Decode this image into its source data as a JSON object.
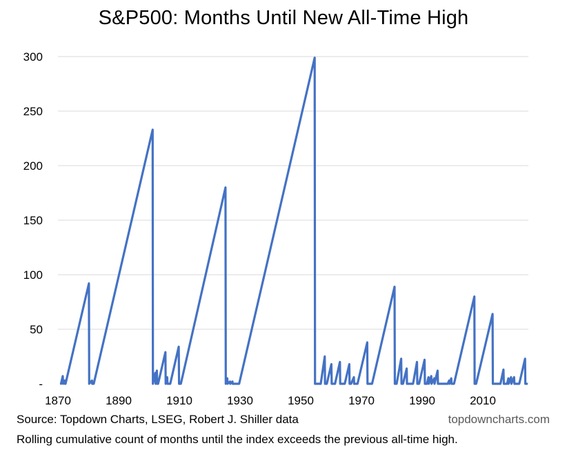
{
  "chart_data": {
    "type": "line",
    "title": "S&P500: Months Until New All-Time High",
    "xlabel": "",
    "ylabel": "",
    "xlim": [
      1870,
      2025
    ],
    "ylim": [
      0,
      300
    ],
    "grid": true,
    "x_ticks": [
      "1870",
      "1890",
      "1910",
      "1930",
      "1950",
      "1970",
      "1990",
      "2010"
    ],
    "y_ticks": [
      "-",
      "50",
      "100",
      "150",
      "200",
      "250",
      "300"
    ],
    "line_color": "#4472C4",
    "series": [
      {
        "name": "",
        "points": [
          [
            1871.0,
            0
          ],
          [
            1871.6,
            7
          ],
          [
            1871.7,
            0
          ],
          [
            1872.2,
            3
          ],
          [
            1872.3,
            0
          ],
          [
            1872.5,
            0
          ],
          [
            1880.2,
            92
          ],
          [
            1880.3,
            0
          ],
          [
            1881.2,
            3
          ],
          [
            1881.3,
            0
          ],
          [
            1881.8,
            0
          ],
          [
            1901.2,
            233
          ],
          [
            1901.3,
            0
          ],
          [
            1902.1,
            10
          ],
          [
            1902.2,
            0
          ],
          [
            1902.6,
            12
          ],
          [
            1902.7,
            0
          ],
          [
            1903.0,
            0
          ],
          [
            1905.4,
            29
          ],
          [
            1905.5,
            0
          ],
          [
            1906.0,
            6
          ],
          [
            1906.1,
            0
          ],
          [
            1907.0,
            0
          ],
          [
            1909.8,
            34
          ],
          [
            1909.9,
            0
          ],
          [
            1910.5,
            0
          ],
          [
            1925.2,
            180
          ],
          [
            1925.3,
            0
          ],
          [
            1925.8,
            5
          ],
          [
            1925.9,
            0
          ],
          [
            1926.7,
            2
          ],
          [
            1926.8,
            0
          ],
          [
            1927.5,
            2
          ],
          [
            1927.6,
            0
          ],
          [
            1929.7,
            0
          ],
          [
            1954.6,
            299
          ],
          [
            1954.7,
            0
          ],
          [
            1956.6,
            0
          ],
          [
            1957.9,
            25
          ],
          [
            1958.0,
            0
          ],
          [
            1958.6,
            0
          ],
          [
            1960.1,
            18
          ],
          [
            1960.2,
            0
          ],
          [
            1961.3,
            0
          ],
          [
            1962.9,
            20
          ],
          [
            1963.0,
            0
          ],
          [
            1964.5,
            0
          ],
          [
            1966.0,
            18
          ],
          [
            1966.1,
            0
          ],
          [
            1966.6,
            0
          ],
          [
            1967.5,
            6
          ],
          [
            1967.6,
            0
          ],
          [
            1968.7,
            0
          ],
          [
            1971.9,
            38
          ],
          [
            1972.0,
            0
          ],
          [
            1973.5,
            0
          ],
          [
            1980.9,
            89
          ],
          [
            1981.0,
            0
          ],
          [
            1981.6,
            0
          ],
          [
            1983.1,
            23
          ],
          [
            1983.2,
            0
          ],
          [
            1983.7,
            0
          ],
          [
            1984.9,
            14
          ],
          [
            1985.0,
            0
          ],
          [
            1987.0,
            0
          ],
          [
            1988.3,
            20
          ],
          [
            1988.4,
            0
          ],
          [
            1989.0,
            0
          ],
          [
            1990.8,
            22
          ],
          [
            1990.9,
            0
          ],
          [
            1991.6,
            0
          ],
          [
            1992.1,
            6
          ],
          [
            1992.2,
            0
          ],
          [
            1993.0,
            7
          ],
          [
            1993.1,
            0
          ],
          [
            1994.0,
            5
          ],
          [
            1994.1,
            0
          ],
          [
            1995.1,
            12
          ],
          [
            1995.2,
            0
          ],
          [
            1996.0,
            0
          ],
          [
            1998.4,
            0
          ],
          [
            1998.9,
            3
          ],
          [
            1999.0,
            0
          ],
          [
            1999.6,
            5
          ],
          [
            1999.7,
            0
          ],
          [
            2000.5,
            0
          ],
          [
            2007.2,
            80
          ],
          [
            2007.3,
            0
          ],
          [
            2007.8,
            0
          ],
          [
            2013.2,
            64
          ],
          [
            2013.3,
            0
          ],
          [
            2015.8,
            0
          ],
          [
            2016.8,
            13
          ],
          [
            2016.9,
            0
          ],
          [
            2018.0,
            0
          ],
          [
            2018.4,
            5
          ],
          [
            2018.5,
            0
          ],
          [
            2019.3,
            6
          ],
          [
            2019.4,
            0
          ],
          [
            2020.3,
            6
          ],
          [
            2020.4,
            0
          ],
          [
            2022.0,
            0
          ],
          [
            2023.9,
            23
          ],
          [
            2024.0,
            0
          ],
          [
            2024.5,
            0
          ]
        ]
      }
    ]
  },
  "footer": {
    "source": "Source: Topdown Charts, LSEG, Robert J. Shiller data",
    "brand": "topdowncharts.com",
    "note": "Rolling cumulative count of months until the index exceeds the previous all-time high."
  }
}
